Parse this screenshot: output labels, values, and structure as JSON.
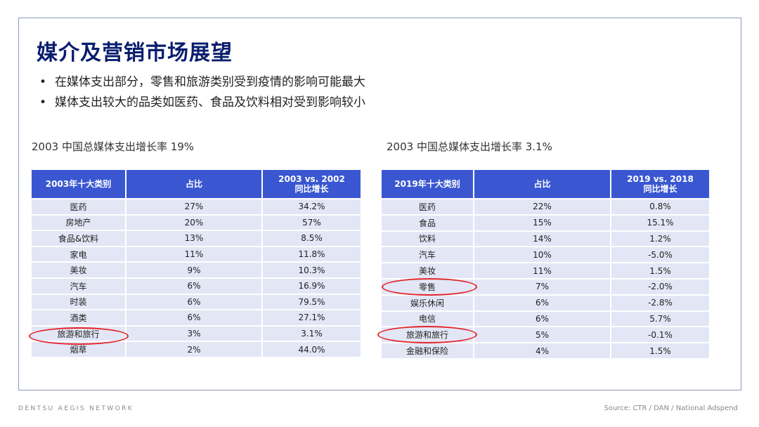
{
  "slide": {
    "title": "媒介及营销市场展望",
    "bullets": [
      "在媒体支出部分，零售和旅游类别受到疫情的影响可能最大",
      "媒体支出较大的品类如医药、食品及饮料相对受到影响较小"
    ]
  },
  "left_table": {
    "subhead": "2003 中国总媒体支出增长率 19%",
    "headers": [
      "2003年十大类别",
      "占比",
      "2003 vs. 2002",
      "同比增长"
    ],
    "rows": [
      {
        "category": "医药",
        "share": "27%",
        "growth": "34.2%"
      },
      {
        "category": "房地产",
        "share": "20%",
        "growth": "57%"
      },
      {
        "category": "食品&饮料",
        "share": "13%",
        "growth": "8.5%"
      },
      {
        "category": "家电",
        "share": "11%",
        "growth": "11.8%"
      },
      {
        "category": "美妆",
        "share": "9%",
        "growth": "10.3%"
      },
      {
        "category": "汽车",
        "share": "6%",
        "growth": "16.9%"
      },
      {
        "category": "时装",
        "share": "6%",
        "growth": "79.5%"
      },
      {
        "category": "酒类",
        "share": "6%",
        "growth": "27.1%"
      },
      {
        "category": "旅游和旅行",
        "share": "3%",
        "growth": "3.1%"
      },
      {
        "category": "烟草",
        "share": "2%",
        "growth": "44.0%"
      }
    ]
  },
  "right_table": {
    "subhead": "2003 中国总媒体支出增长率 3.1%",
    "headers": [
      "2019年十大类别",
      "占比",
      "2019 vs. 2018",
      "同比增长"
    ],
    "rows": [
      {
        "category": "医药",
        "share": "22%",
        "growth": "0.8%"
      },
      {
        "category": "食品",
        "share": "15%",
        "growth": "15.1%"
      },
      {
        "category": "饮料",
        "share": "14%",
        "growth": "1.2%"
      },
      {
        "category": "汽车",
        "share": "10%",
        "growth": "-5.0%"
      },
      {
        "category": "美妆",
        "share": "11%",
        "growth": "1.5%"
      },
      {
        "category": "零售",
        "share": "7%",
        "growth": "-2.0%"
      },
      {
        "category": "娱乐休闲",
        "share": "6%",
        "growth": "-2.8%"
      },
      {
        "category": "电信",
        "share": "6%",
        "growth": "5.7%"
      },
      {
        "category": "旅游和旅行",
        "share": "5%",
        "growth": "-0.1%"
      },
      {
        "category": "金融和保险",
        "share": "4%",
        "growth": "1.5%"
      }
    ]
  },
  "footer": {
    "brand": "DENTSU AEGIS NETWORK",
    "source": "Source: CTR / DAN / National Adspend"
  },
  "colors": {
    "title": "#0a1e6e",
    "header_bg": "#3a57d1",
    "row_bg": "#e3e6f5",
    "highlight_circle": "#e3242b"
  }
}
